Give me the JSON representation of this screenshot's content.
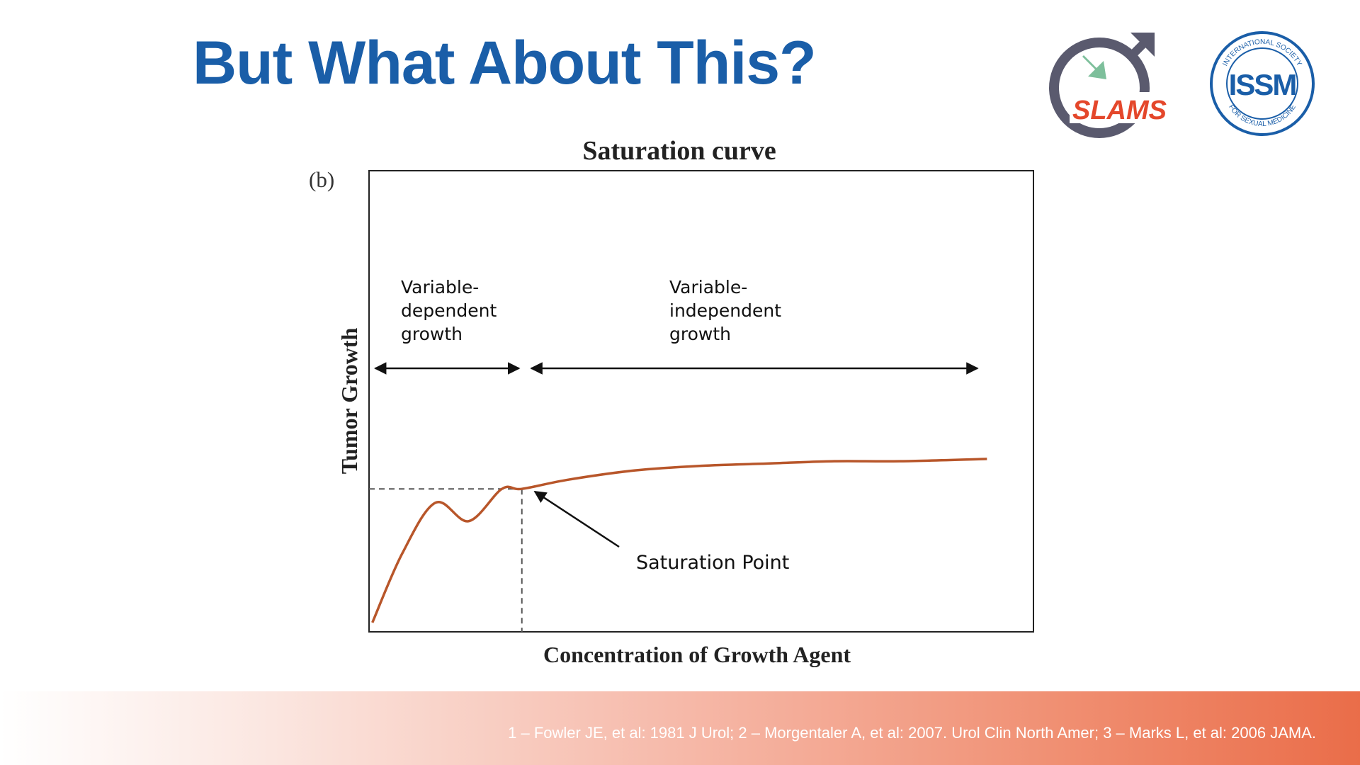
{
  "slide": {
    "title": "But What About This?",
    "footer_citation": "1 – Fowler JE, et al: 1981 J Urol; 2 – Morgentaler A, et al: 2007. Urol Clin North Amer; 3 – Marks L, et al: 2006 JAMA."
  },
  "logos": {
    "slams": {
      "text": "SLAMS",
      "icon": "male-symbol-arrow-icon"
    },
    "issm": {
      "main": "ISSM",
      "ring_top": "INTERNATIONAL SOCIETY",
      "ring_bottom": "FOR SEXUAL MEDICINE"
    }
  },
  "colors": {
    "title": "#1a5ea8",
    "curve": "#b8562a",
    "slams_red": "#e4472b",
    "slams_gray": "#5a5a6e",
    "slams_green": "#7dbf9b",
    "issm_blue": "#1a5ea8"
  },
  "chart_data": {
    "type": "line",
    "title": "Saturation curve",
    "panel_label": "(b)",
    "xlabel": "Concentration of Growth Agent",
    "ylabel": "Tumor Growth",
    "xlim": [
      0,
      1
    ],
    "ylim": [
      0,
      1
    ],
    "grid": false,
    "axis_ticks": false,
    "series": [
      {
        "x": [
          0.005,
          0.05,
          0.1,
          0.15,
          0.2,
          0.23,
          0.3,
          0.4,
          0.5,
          0.6,
          0.7,
          0.8,
          0.93
        ],
        "y": [
          0.02,
          0.17,
          0.28,
          0.24,
          0.31,
          0.31,
          0.33,
          0.35,
          0.36,
          0.365,
          0.37,
          0.37,
          0.375
        ]
      }
    ],
    "saturation_point": {
      "x": 0.23,
      "y": 0.31
    },
    "regions": [
      {
        "label": "Variable-\ndependent\ngrowth",
        "x_start": 0.005,
        "x_end": 0.23
      },
      {
        "label": "Variable-\nindependent\ngrowth",
        "x_start": 0.24,
        "x_end": 0.92
      }
    ],
    "annotations": [
      {
        "text": "Saturation Point"
      }
    ]
  }
}
